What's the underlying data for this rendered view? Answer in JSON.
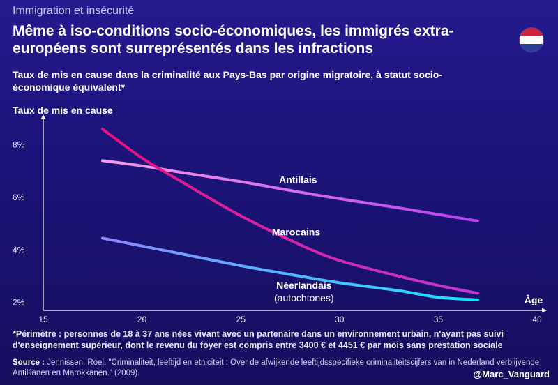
{
  "header": {
    "topic": "Immigration et insécurité",
    "headline": "Même à iso-conditions socio-économiques, les immigrés extra-européens sont surreprésentés dans les infractions",
    "subtitle": "Taux de mis en cause dans la criminalité aux Pays-Bas par origine migratoire, à statut socio-économique équivalent*",
    "flag_colors": [
      "#d0233a",
      "#ffffff",
      "#2a3f99"
    ]
  },
  "chart_data": {
    "type": "line",
    "ylabel": "Taux de mis en cause",
    "xlabel": "Âge",
    "xlim": [
      15,
      40
    ],
    "ylim": [
      1.7,
      9.0
    ],
    "x_ticks": [
      "15",
      "20",
      "25",
      "30",
      "35",
      "40"
    ],
    "y_ticks": [
      {
        "value": 8,
        "label": "8%"
      },
      {
        "value": 6,
        "label": "6%"
      },
      {
        "value": 4,
        "label": "4%"
      },
      {
        "value": 2,
        "label": "2%"
      }
    ],
    "series": [
      {
        "name": "Antillais",
        "color": "#cc55ff",
        "x": [
          18,
          20,
          22,
          25,
          28,
          30,
          33,
          35,
          37
        ],
        "y": [
          7.4,
          7.2,
          6.95,
          6.6,
          6.2,
          5.95,
          5.6,
          5.35,
          5.1
        ]
      },
      {
        "name": "Marocains",
        "color": "#e0218f",
        "x": [
          18,
          20,
          22,
          25,
          28,
          30,
          33,
          35,
          37
        ],
        "y": [
          8.6,
          7.5,
          6.6,
          5.3,
          4.2,
          3.6,
          3.0,
          2.65,
          2.35
        ]
      },
      {
        "name": "Néerlandais",
        "sublabel": "(autochtones)",
        "color": "#7fa0ff",
        "x": [
          18,
          20,
          22,
          25,
          28,
          30,
          33,
          35,
          37
        ],
        "y": [
          4.45,
          4.15,
          3.85,
          3.4,
          3.0,
          2.75,
          2.45,
          2.2,
          2.1
        ]
      }
    ]
  },
  "footer": {
    "footnote": "*Périmètre : personnes de 18 à 37 ans nées vivant avec un partenaire dans un environnement urbain, n'ayant pas suivi d'enseignement supérieur, dont le revenu du foyer est compris entre 3400 € et 4451 € par mois sans prestation sociale",
    "source_label": "Source :",
    "source_text": "Jennissen, Roel. \"Criminaliteit, leeftijd en etniciteit : Over de afwijkende leeftijdsspecifieke criminaliteitscijfers van in Nederland verblijvende Antillianen en Marokkanen.\" (2009).",
    "handle": "@Marc_Vanguard"
  }
}
